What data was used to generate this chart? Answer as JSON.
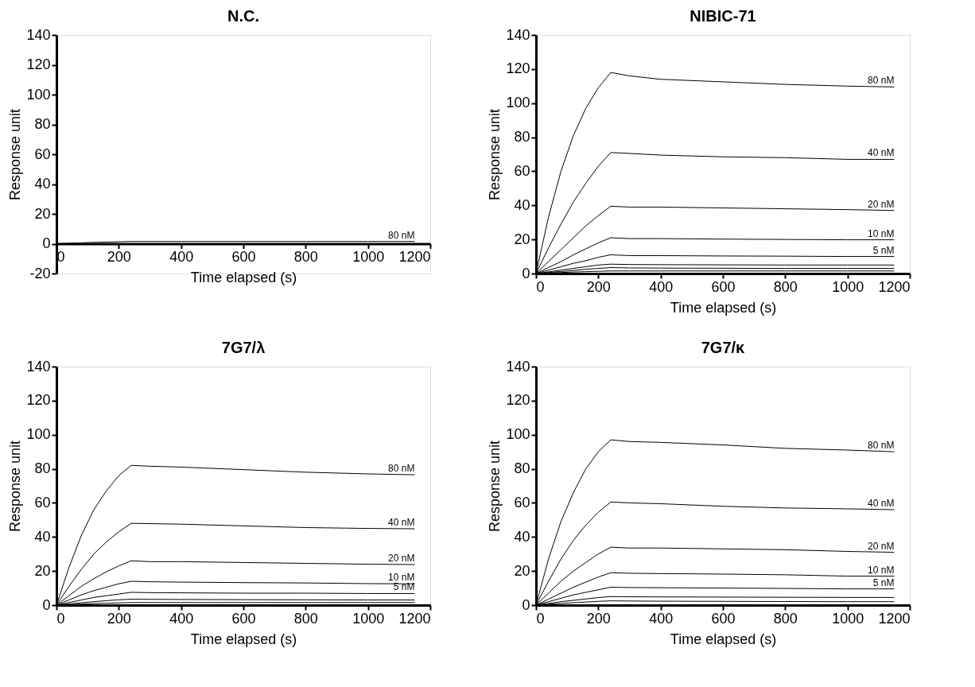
{
  "chart_data": [
    {
      "type": "line",
      "title": "N.C.",
      "xlabel": "Time elapsed (s)",
      "ylabel": "Response unit",
      "xlim": [
        0,
        1200
      ],
      "xticks": [
        0,
        200,
        400,
        600,
        800,
        1000,
        1200
      ],
      "ylim": [
        -20,
        140
      ],
      "yticks": [
        -20,
        0,
        20,
        40,
        60,
        80,
        100,
        120,
        140
      ],
      "x": [
        0,
        40,
        80,
        120,
        160,
        200,
        240,
        300,
        400,
        600,
        800,
        1000,
        1150
      ],
      "series": [
        {
          "name": "80 nM",
          "color": "#000000",
          "values": [
            0,
            0.3,
            0.6,
            0.9,
            1.1,
            1.3,
            1.5,
            1.5,
            1.5,
            1.5,
            1.5,
            1.5,
            1.5
          ]
        }
      ]
    },
    {
      "type": "line",
      "title": "NIBIC-71",
      "xlabel": "Time elapsed (s)",
      "ylabel": "Response unit",
      "xlim": [
        0,
        1200
      ],
      "xticks": [
        0,
        200,
        400,
        600,
        800,
        1000,
        1200
      ],
      "ylim": [
        0,
        140
      ],
      "yticks": [
        0,
        20,
        40,
        60,
        80,
        100,
        120,
        140
      ],
      "x": [
        0,
        40,
        80,
        120,
        160,
        200,
        240,
        300,
        400,
        600,
        800,
        1000,
        1150
      ],
      "series": [
        {
          "name": "80 nM",
          "color": "#000000",
          "values": [
            0,
            33,
            60,
            81,
            97,
            109,
            118,
            116,
            114,
            112.5,
            111,
            110,
            109.5
          ]
        },
        {
          "name": "40 nM",
          "color": "#000000",
          "values": [
            0,
            15,
            29,
            42,
            53,
            63,
            71,
            70.5,
            69.5,
            68.5,
            68,
            67,
            67
          ]
        },
        {
          "name": "20 nM",
          "color": "#000000",
          "values": [
            0,
            7,
            14,
            21,
            28,
            34,
            39.5,
            39,
            39,
            38.5,
            38,
            37.5,
            37
          ]
        },
        {
          "name": "10 nM",
          "color": "#000000",
          "values": [
            0,
            3.5,
            7,
            11,
            14.5,
            18,
            21,
            20.5,
            20.5,
            20.2,
            20,
            19.8,
            19.8
          ]
        },
        {
          "name": "5 nM",
          "color": "#000000",
          "values": [
            0,
            2,
            4,
            6,
            7.5,
            9.5,
            11,
            10.5,
            10.5,
            10.3,
            10.2,
            10,
            10
          ]
        },
        {
          "color": "#000000",
          "values": [
            0,
            1,
            2,
            3,
            4,
            5,
            5.5,
            5.3,
            5.2,
            5.1,
            5,
            5,
            5
          ]
        },
        {
          "color": "#000000",
          "values": [
            0,
            0.6,
            1.2,
            1.8,
            2.5,
            3,
            3.5,
            3.3,
            3.2,
            3.1,
            3,
            3,
            3
          ]
        },
        {
          "color": "#000000",
          "values": [
            0,
            0.3,
            0.6,
            0.9,
            1.1,
            1.3,
            1.5,
            1.5,
            1.5,
            1.5,
            1.5,
            1.5,
            1.5
          ]
        }
      ]
    },
    {
      "type": "line",
      "title": "7G7/λ",
      "xlabel": "Time elapsed (s)",
      "ylabel": "Response unit",
      "xlim": [
        0,
        1200
      ],
      "xticks": [
        0,
        200,
        400,
        600,
        800,
        1000,
        1200
      ],
      "ylim": [
        0,
        140
      ],
      "yticks": [
        0,
        20,
        40,
        60,
        80,
        100,
        120,
        140
      ],
      "x": [
        0,
        40,
        80,
        120,
        160,
        200,
        240,
        300,
        400,
        600,
        800,
        1000,
        1150
      ],
      "series": [
        {
          "name": "80 nM",
          "color": "#000000",
          "values": [
            0,
            22,
            41,
            56,
            67,
            76,
            82,
            81.5,
            81,
            79.5,
            78,
            77,
            76.5
          ]
        },
        {
          "name": "40 nM",
          "color": "#000000",
          "values": [
            0,
            11,
            21,
            30,
            37,
            43,
            48,
            47.8,
            47.5,
            46.5,
            45.5,
            45,
            44.8
          ]
        },
        {
          "name": "20 nM",
          "color": "#000000",
          "values": [
            0,
            5.5,
            11,
            15.5,
            19.5,
            23,
            26,
            25.5,
            25.5,
            25,
            24.5,
            24,
            23.8
          ]
        },
        {
          "name": "10 nM",
          "color": "#000000",
          "values": [
            0,
            3,
            6,
            8.5,
            10.5,
            12.5,
            14,
            13.7,
            13.5,
            13.2,
            13,
            12.6,
            12.5
          ]
        },
        {
          "name": "5 nM",
          "color": "#000000",
          "values": [
            0,
            1.5,
            3,
            4.5,
            5.5,
            6.5,
            7.5,
            7.3,
            7.2,
            7,
            7,
            6.8,
            6.8
          ]
        },
        {
          "color": "#000000",
          "values": [
            0,
            0.7,
            1.4,
            2,
            2.6,
            3.1,
            3.5,
            3.4,
            3.3,
            3.2,
            3.1,
            3,
            3
          ]
        },
        {
          "color": "#000000",
          "values": [
            0,
            0.3,
            0.6,
            0.9,
            1.1,
            1.3,
            1.5,
            1.5,
            1.5,
            1.5,
            1.5,
            1.5,
            1.5
          ]
        }
      ]
    },
    {
      "type": "line",
      "title": "7G7/κ",
      "xlabel": "Time elapsed (s)",
      "ylabel": "Response unit",
      "xlim": [
        0,
        1200
      ],
      "xticks": [
        0,
        200,
        400,
        600,
        800,
        1000,
        1200
      ],
      "ylim": [
        0,
        140
      ],
      "yticks": [
        0,
        20,
        40,
        60,
        80,
        100,
        120,
        140
      ],
      "x": [
        0,
        40,
        80,
        120,
        160,
        200,
        240,
        300,
        400,
        600,
        800,
        1000,
        1150
      ],
      "series": [
        {
          "name": "80 nM",
          "color": "#000000",
          "values": [
            0,
            27,
            49,
            66,
            80,
            90,
            97,
            96,
            95.5,
            94,
            92,
            91,
            90
          ]
        },
        {
          "name": "40 nM",
          "color": "#000000",
          "values": [
            0,
            14,
            27,
            38,
            47,
            54.5,
            60.5,
            60,
            59.5,
            58,
            57,
            56.5,
            56
          ]
        },
        {
          "name": "20 nM",
          "color": "#000000",
          "values": [
            0,
            7,
            14,
            20,
            25,
            30,
            34,
            33.5,
            33.5,
            33,
            32.5,
            31.5,
            31
          ]
        },
        {
          "name": "10 nM",
          "color": "#000000",
          "values": [
            0,
            3.5,
            7,
            10.5,
            13.5,
            16.5,
            19,
            18.7,
            18.5,
            18.2,
            17.8,
            17,
            17
          ]
        },
        {
          "name": "5 nM",
          "color": "#000000",
          "values": [
            0,
            2,
            4,
            6,
            7.5,
            9,
            10.5,
            10.3,
            10.2,
            10,
            9.8,
            9.5,
            9.5
          ]
        },
        {
          "color": "#000000",
          "values": [
            0,
            1,
            2,
            2.8,
            3.6,
            4.4,
            5,
            4.9,
            4.8,
            4.7,
            4.6,
            4.5,
            4.5
          ]
        },
        {
          "color": "#000000",
          "values": [
            0,
            0.5,
            1,
            1.4,
            1.8,
            2.2,
            2.5,
            2.4,
            2.3,
            2.2,
            2.1,
            2,
            2
          ]
        }
      ]
    }
  ]
}
